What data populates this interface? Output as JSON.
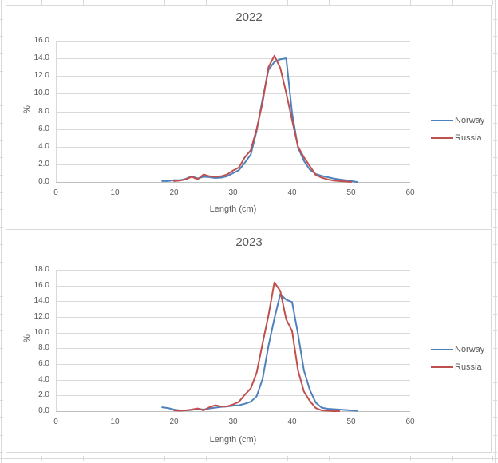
{
  "sheet": {
    "gridline_color": "#d9d9d9",
    "background_color": "#ffffff"
  },
  "chart_data": [
    {
      "type": "line",
      "title": "2022",
      "xlabel": "Length (cm)",
      "ylabel": "%",
      "xlim": [
        0,
        60
      ],
      "xtick_step": 10,
      "ylim": [
        0,
        16
      ],
      "ytick_step": 2,
      "ytick_decimals": 1,
      "grid": "horizontal",
      "legend_position": "right",
      "legend": [
        "Norway",
        "Russia"
      ],
      "series": [
        {
          "name": "Norway",
          "color": "#4F81BD",
          "x_start": 18,
          "x_step": 1,
          "values": [
            0.1,
            0.1,
            0.2,
            0.2,
            0.35,
            0.65,
            0.4,
            0.6,
            0.55,
            0.45,
            0.5,
            0.65,
            1.0,
            1.35,
            2.2,
            3.1,
            5.8,
            9.4,
            12.7,
            13.6,
            13.9,
            14.0,
            7.8,
            3.9,
            2.4,
            1.4,
            0.9,
            0.7,
            0.55,
            0.4,
            0.3,
            0.2,
            0.1,
            0.0
          ]
        },
        {
          "name": "Russia",
          "color": "#C0504D",
          "x_start": 20,
          "x_step": 1,
          "values": [
            0.1,
            0.15,
            0.3,
            0.6,
            0.3,
            0.85,
            0.65,
            0.6,
            0.65,
            0.85,
            1.3,
            1.65,
            2.8,
            3.6,
            6.0,
            9.0,
            13.0,
            14.3,
            12.9,
            10.1,
            7.0,
            4.0,
            2.8,
            1.8,
            0.8,
            0.5,
            0.3,
            0.15,
            0.1,
            0.05,
            0.0
          ]
        }
      ]
    },
    {
      "type": "line",
      "title": "2023",
      "xlabel": "Length (cm)",
      "ylabel": "%",
      "xlim": [
        0,
        60
      ],
      "xtick_step": 10,
      "ylim": [
        0,
        18
      ],
      "ytick_step": 2,
      "ytick_decimals": 1,
      "grid": "horizontal",
      "legend_position": "right",
      "legend": [
        "Norway",
        "Russia"
      ],
      "series": [
        {
          "name": "Norway",
          "color": "#4F81BD",
          "x_start": 18,
          "x_step": 1,
          "values": [
            0.5,
            0.4,
            0.2,
            0.1,
            0.1,
            0.15,
            0.3,
            0.2,
            0.35,
            0.45,
            0.55,
            0.6,
            0.7,
            0.75,
            0.95,
            1.2,
            1.9,
            4.1,
            8.3,
            11.8,
            14.9,
            14.2,
            13.9,
            9.8,
            5.2,
            2.7,
            1.1,
            0.45,
            0.3,
            0.25,
            0.2,
            0.15,
            0.1,
            0.05
          ]
        },
        {
          "name": "Russia",
          "color": "#C0504D",
          "x_start": 20,
          "x_step": 1,
          "values": [
            0.1,
            0.05,
            0.1,
            0.2,
            0.35,
            0.1,
            0.5,
            0.75,
            0.6,
            0.6,
            0.85,
            1.2,
            2.1,
            2.9,
            4.9,
            8.6,
            12.2,
            16.4,
            15.3,
            11.7,
            10.2,
            5.2,
            2.5,
            1.3,
            0.4,
            0.1,
            0.05,
            0.0,
            0.0
          ]
        }
      ]
    }
  ]
}
